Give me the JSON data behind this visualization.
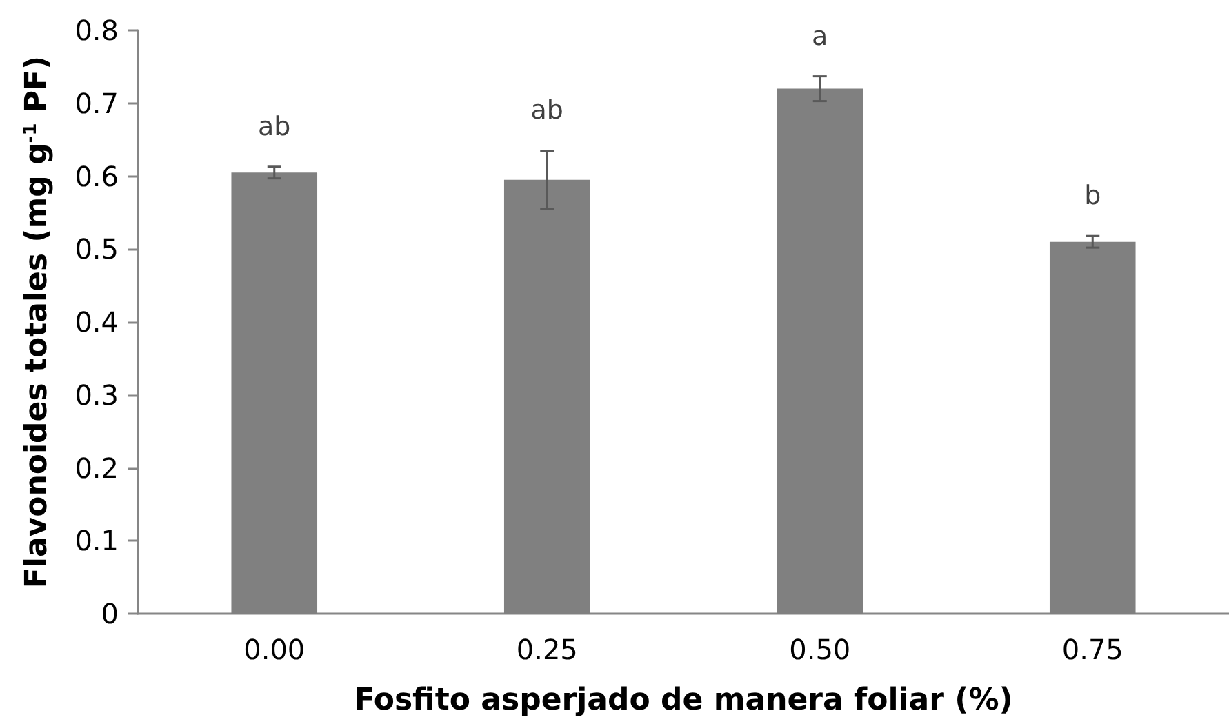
{
  "chart_data": {
    "type": "bar",
    "xlabel": "Fosfito asperjado de manera foliar (%)",
    "ylabel": "Flavonoides totales (mg g$^{-1}$ PF)",
    "categories": [
      "0.00",
      "0.25",
      "0.50",
      "0.75"
    ],
    "values": [
      0.605,
      0.595,
      0.72,
      0.51
    ],
    "errors": [
      0.008,
      0.04,
      0.017,
      0.008
    ],
    "color": "#808080",
    "ylim": [
      0,
      0.8
    ],
    "yticks": [
      0,
      0.1,
      0.2,
      0.3,
      0.4,
      0.5,
      0.6,
      0.7,
      0.8
    ],
    "annotations": [
      "ab",
      "ab",
      "a",
      "b"
    ]
  }
}
